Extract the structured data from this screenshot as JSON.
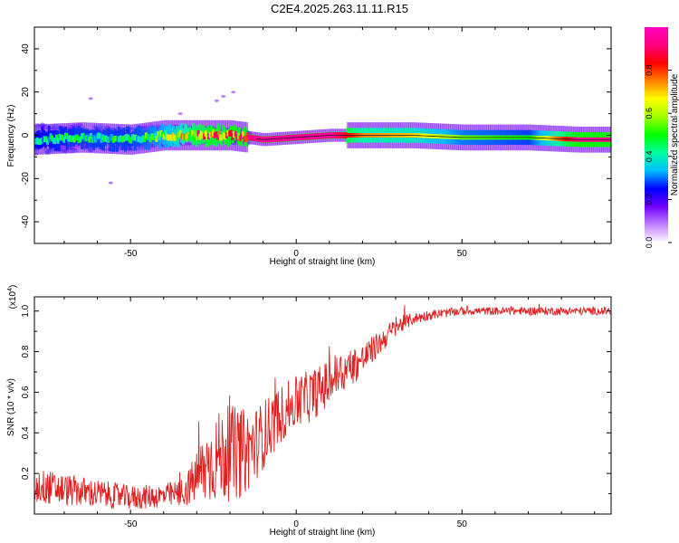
{
  "title": "C2E4.2025.263.11.11.R15",
  "chart_data": [
    {
      "type": "heatmap",
      "name": "spectrogram",
      "xlabel": "Height of straight line (km)",
      "ylabel": "Frequency (Hz)",
      "xlim": [
        -79,
        95
      ],
      "ylim": [
        -50,
        50
      ],
      "xticks": [
        -50,
        0,
        50
      ],
      "yticks": [
        -40,
        -20,
        0,
        20,
        40
      ],
      "colorbar": {
        "label": "Normalized spectral amplitude",
        "range": [
          0,
          1
        ],
        "ticks": [
          0.0,
          0.2,
          0.4,
          0.6,
          0.8
        ],
        "tick_labels": [
          "0.0",
          "0.2",
          "0.4",
          "0.6",
          "0.8"
        ],
        "colors": [
          "#ffffff",
          "#c080ff",
          "#7000ff",
          "#0000ff",
          "#00c0ff",
          "#00ffa0",
          "#00ff00",
          "#a0ff00",
          "#ffff00",
          "#ff8000",
          "#ff0000",
          "#ff0080",
          "#ff00c0"
        ]
      },
      "ridge": [
        {
          "x": -79,
          "freq": -2,
          "amplitude": 0.45
        },
        {
          "x": -65,
          "freq": -1,
          "amplitude": 0.5
        },
        {
          "x": -50,
          "freq": -2,
          "amplitude": 0.5
        },
        {
          "x": -40,
          "freq": 0,
          "amplitude": 0.6
        },
        {
          "x": -30,
          "freq": 0,
          "amplitude": 0.85
        },
        {
          "x": -20,
          "freq": 0,
          "amplitude": 0.9
        },
        {
          "x": -10,
          "freq": -2,
          "amplitude": 0.95
        },
        {
          "x": 0,
          "freq": -1,
          "amplitude": 0.95
        },
        {
          "x": 10,
          "freq": 0,
          "amplitude": 0.95
        },
        {
          "x": 20,
          "freq": 0,
          "amplitude": 0.75
        },
        {
          "x": 35,
          "freq": 0,
          "amplitude": 0.7
        },
        {
          "x": 50,
          "freq": -1,
          "amplitude": 0.55
        },
        {
          "x": 70,
          "freq": -1,
          "amplitude": 0.5
        },
        {
          "x": 85,
          "freq": -2,
          "amplitude": 0.95
        },
        {
          "x": 95,
          "freq": -2,
          "amplitude": 0.95
        }
      ],
      "scatter_outliers": [
        {
          "x": -22,
          "freq": 18
        },
        {
          "x": -19,
          "freq": 20
        },
        {
          "x": -24,
          "freq": 16
        },
        {
          "x": -35,
          "freq": 10
        },
        {
          "x": -44,
          "freq": 5
        },
        {
          "x": -56,
          "freq": -22
        },
        {
          "x": -62,
          "freq": 17
        }
      ]
    },
    {
      "type": "line",
      "name": "snr",
      "xlabel": "Height of straight line (km)",
      "ylabel": "SNR (10 * v/v)",
      "multiplier": "(x10",
      "multiplier_exp": "4",
      "multiplier_close": ")",
      "color": "#e02020",
      "xlim": [
        -79,
        95
      ],
      "ylim": [
        0,
        1.07
      ],
      "xticks": [
        -50,
        0,
        50
      ],
      "yticks": [
        0.2,
        0.4,
        0.6,
        0.8,
        1.0
      ],
      "ytick_labels": [
        "0.2",
        "0.4",
        "0.6",
        "0.8",
        "1.0"
      ],
      "series": [
        {
          "name": "SNR",
          "x": [
            -79,
            -70,
            -60,
            -50,
            -40,
            -35,
            -32,
            -28,
            -24,
            -20,
            -16,
            -12,
            -8,
            -4,
            0,
            4,
            8,
            12,
            16,
            20,
            25,
            30,
            35,
            40,
            50,
            60,
            70,
            80,
            90,
            95
          ],
          "values": [
            0.14,
            0.12,
            0.1,
            0.08,
            0.09,
            0.1,
            0.14,
            0.22,
            0.28,
            0.3,
            0.3,
            0.35,
            0.43,
            0.5,
            0.55,
            0.58,
            0.62,
            0.68,
            0.72,
            0.76,
            0.84,
            0.92,
            0.96,
            0.98,
            1.0,
            1.0,
            1.0,
            1.0,
            1.0,
            1.0
          ],
          "noise": [
            0.09,
            0.08,
            0.07,
            0.06,
            0.06,
            0.07,
            0.1,
            0.18,
            0.22,
            0.24,
            0.22,
            0.18,
            0.16,
            0.14,
            0.13,
            0.13,
            0.12,
            0.12,
            0.1,
            0.08,
            0.06,
            0.05,
            0.03,
            0.025,
            0.02,
            0.02,
            0.02,
            0.02,
            0.02,
            0.02
          ]
        }
      ]
    }
  ]
}
